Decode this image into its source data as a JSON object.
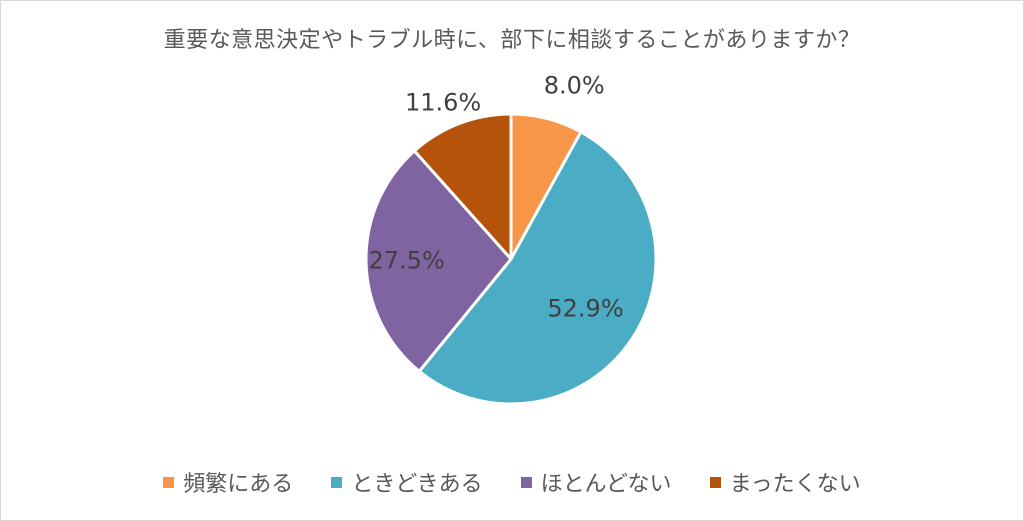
{
  "chart_data": {
    "type": "pie",
    "title": "重要な意思決定やトラブル時に、部下に相談することがありますか？",
    "categories": [
      "頻繁にある",
      "ときどきある",
      "ほとんどない",
      "まったくない"
    ],
    "values": [
      8.0,
      52.9,
      27.5,
      11.6
    ],
    "labels": [
      "8.0%",
      "52.9%",
      "27.5%",
      "11.6%"
    ],
    "colors": [
      "#F79646",
      "#4BACC6",
      "#8064A2",
      "#B45309"
    ],
    "legend_position": "bottom"
  }
}
